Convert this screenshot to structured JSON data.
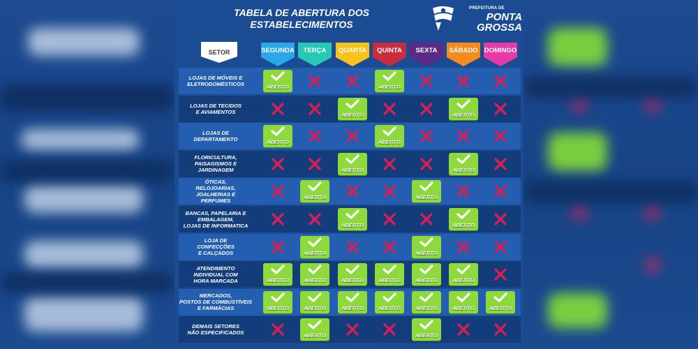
{
  "title_lines": [
    "TABELA DE ABERTURA DOS",
    "ESTABELECIMENTOS"
  ],
  "logo": {
    "small": "PREFEITURA DE",
    "line1": "PONTA",
    "line2": "GROSSA"
  },
  "setor_header": "SETOR",
  "open_label": "ABERTO",
  "days": [
    {
      "name": "SEGUNDA",
      "color": "#2aa7e8"
    },
    {
      "name": "TERÇA",
      "color": "#27c9b4"
    },
    {
      "name": "QUARTA",
      "color": "#f7c21a"
    },
    {
      "name": "QUINTA",
      "color": "#c72d3d"
    },
    {
      "name": "SEXTA",
      "color": "#5b2a86"
    },
    {
      "name": "SÁBADO",
      "color": "#f58a1f"
    },
    {
      "name": "DOMINGO",
      "color": "#e83aa6"
    }
  ],
  "colors": {
    "open_green": "#8ed93c",
    "closed_red": "#d81f55",
    "row_light": "#235eb0",
    "row_dark": "#123c7a"
  },
  "rows": [
    {
      "label": "LOJAS DE MÓVEIS E\nELETRODOMÉSTICOS",
      "open": [
        true,
        false,
        false,
        true,
        false,
        false,
        false
      ]
    },
    {
      "label": "LOJAS DE TECIDOS\nE AVIAMENTOS",
      "open": [
        false,
        false,
        true,
        false,
        false,
        true,
        false
      ]
    },
    {
      "label": "LOJAS DE\nDEPARTAMENTO",
      "open": [
        true,
        false,
        false,
        true,
        false,
        false,
        false
      ]
    },
    {
      "label": "FLORICULTURA,\nPAISAGISMOS E\nJARDINAGEM",
      "open": [
        false,
        false,
        true,
        false,
        false,
        true,
        false
      ]
    },
    {
      "label": "ÓTICAS,\nRELOJOARIAS,\nJOALHERIAS E\nPERFUMES",
      "open": [
        false,
        true,
        false,
        false,
        true,
        false,
        false
      ]
    },
    {
      "label": "BANCAS, PAPELARIA E\nEMBALAGEM,\nLOJAS DE INFORMATICA",
      "open": [
        false,
        false,
        true,
        false,
        false,
        true,
        false
      ]
    },
    {
      "label": "LOJA DE\nCONFECÇÕES\nE CALÇADOS",
      "open": [
        false,
        true,
        false,
        false,
        true,
        false,
        false
      ]
    },
    {
      "label": "ATENDIMENTO\nINDIVIDUAL COM\nHORA MARCADA",
      "open": [
        true,
        true,
        true,
        true,
        true,
        true,
        false
      ]
    },
    {
      "label": "MERCADOS,\nPOSTOS DE COMBUSTÍVEIS\nE FARMÁCIAS",
      "open": [
        true,
        true,
        true,
        true,
        true,
        true,
        true
      ]
    },
    {
      "label": "DEMAIS SETORES\nNÃO ESPECIFICADOS",
      "open": [
        false,
        true,
        false,
        false,
        true,
        false,
        false
      ]
    }
  ]
}
